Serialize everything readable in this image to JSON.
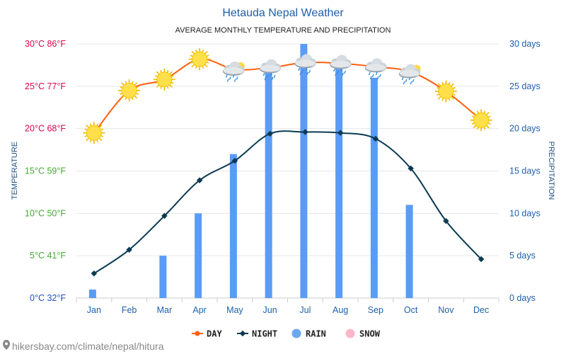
{
  "chart_data": {
    "type": "bar",
    "title": "Hetauda Nepal Weather",
    "subtitle": "AVERAGE MONTHLY TEMPERATURE AND PRECIPITATION",
    "ylabel_left": "TEMPERATURE",
    "ylabel_right": "PRECIPITATION",
    "categories": [
      "Jan",
      "Feb",
      "Mar",
      "Apr",
      "May",
      "Jun",
      "Jul",
      "Aug",
      "Sep",
      "Oct",
      "Nov",
      "Dec"
    ],
    "y_left": {
      "range": [
        0,
        30
      ],
      "ticks": [
        {
          "value": 0,
          "label": "0°C 32°F"
        },
        {
          "value": 5,
          "label": "5°C 41°F"
        },
        {
          "value": 10,
          "label": "10°C 50°F"
        },
        {
          "value": 15,
          "label": "15°C 59°F"
        },
        {
          "value": 20,
          "label": "20°C 68°F"
        },
        {
          "value": 25,
          "label": "25°C 77°F"
        },
        {
          "value": 30,
          "label": "30°C 86°F"
        }
      ]
    },
    "y_right": {
      "range": [
        0,
        30
      ],
      "ticks": [
        {
          "value": 0,
          "label": "0 days"
        },
        {
          "value": 5,
          "label": "5 days"
        },
        {
          "value": 10,
          "label": "10 days"
        },
        {
          "value": 15,
          "label": "15 days"
        },
        {
          "value": 20,
          "label": "20 days"
        },
        {
          "value": 25,
          "label": "25 days"
        },
        {
          "value": 30,
          "label": "30 days"
        }
      ]
    },
    "grid": true,
    "legend_position": "bottom",
    "series": [
      {
        "name": "DAY",
        "kind": "line",
        "color": "#ff5f0e",
        "values": [
          19.5,
          24.5,
          25.8,
          28.2,
          27.0,
          27.2,
          27.8,
          27.7,
          27.3,
          26.7,
          24.4,
          21.0
        ],
        "icons": [
          "sun",
          "sun",
          "sun",
          "sun",
          "cloud-sun",
          "cloud-rain",
          "cloud-rain",
          "cloud-rain",
          "cloud-rain",
          "cloud-sun",
          "sun",
          "sun"
        ]
      },
      {
        "name": "NIGHT",
        "kind": "line",
        "color": "#0b3a53",
        "values": [
          2.9,
          5.7,
          9.7,
          13.9,
          16.2,
          19.4,
          19.6,
          19.5,
          18.8,
          15.3,
          9.1,
          4.6
        ]
      },
      {
        "name": "RAIN",
        "kind": "bar",
        "color": "#5a9bf6",
        "legend_color": "#6aa8f0",
        "values": [
          1,
          0,
          5,
          10,
          17,
          27,
          30,
          28,
          26,
          11,
          0,
          0
        ]
      },
      {
        "name": "SNOW",
        "kind": "bar",
        "color": "#ffb6c8",
        "values": [
          0,
          0,
          0,
          0,
          0,
          0,
          0,
          0,
          0,
          0,
          0,
          0
        ]
      }
    ],
    "colors": {
      "title": "#1f5fa8",
      "subtitle": "#222222",
      "axis_right": "#1f5fa8",
      "grid": "#e6e6e6",
      "tick_hot": "#e0004d",
      "tick_warm": "#44aa33",
      "tick_cold": "#1f4fbf"
    }
  },
  "footer": {
    "source": "hikersbay.com/climate/nepal/hitura"
  }
}
